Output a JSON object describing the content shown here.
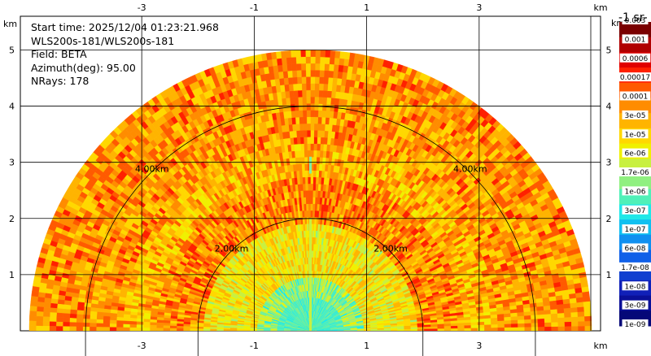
{
  "chart_data": {
    "type": "heatmap",
    "subtype": "ppi-radar-sweep",
    "info": {
      "start_time": "Start time: 2025/12/04 01:23:21.968",
      "instrument": "WLS200s-181/WLS200s-181",
      "field": "Field: BETA",
      "azimuth": "Azimuth(deg): 95.00",
      "nrays": "NRays: 178"
    },
    "x_unit": "km",
    "y_unit": "km",
    "x_ticks": [
      -3,
      -1,
      1,
      3
    ],
    "y_ticks": [
      1,
      2,
      3,
      4,
      5
    ],
    "x_range": [
      -5.0,
      5.0
    ],
    "y_range": [
      0,
      5.6
    ],
    "max_range_km": 5.0,
    "range_rings_km": [
      2.0,
      4.0
    ],
    "range_ring_labels": [
      "2.00km",
      "4.00km"
    ],
    "grid": true,
    "colorbar": {
      "title": "-1 sr-",
      "scale": "log",
      "tick_labels": [
        "0.003",
        "0.001",
        "0.0006",
        "0.00017",
        "0.0001",
        "3e-05",
        "1e-05",
        "6e-06",
        "1.7e-06",
        "1e-06",
        "3e-07",
        "1e-07",
        "6e-08",
        "1.7e-08",
        "1e-08",
        "3e-09",
        "1e-09"
      ],
      "colors": [
        "#7a0000",
        "#b00000",
        "#e00000",
        "#ff2000",
        "#ff5a00",
        "#ff8c00",
        "#ffb400",
        "#ffd800",
        "#f0f000",
        "#c8f040",
        "#90f080",
        "#50f0b8",
        "#20e8e8",
        "#10c0f0",
        "#1090f0",
        "#1060e8",
        "#1040d0",
        "#1020b8",
        "#0a1098",
        "#050878"
      ]
    },
    "field_regions_km": [
      {
        "from": 0.0,
        "to": 1.0,
        "level": 0.48
      },
      {
        "from": 1.0,
        "to": 1.9,
        "level": 0.6
      },
      {
        "from": 1.9,
        "to": 2.7,
        "level": 0.74
      },
      {
        "from": 2.7,
        "to": 3.3,
        "level": 0.68
      },
      {
        "from": 3.3,
        "to": 5.0,
        "level": 0.72
      }
    ]
  }
}
